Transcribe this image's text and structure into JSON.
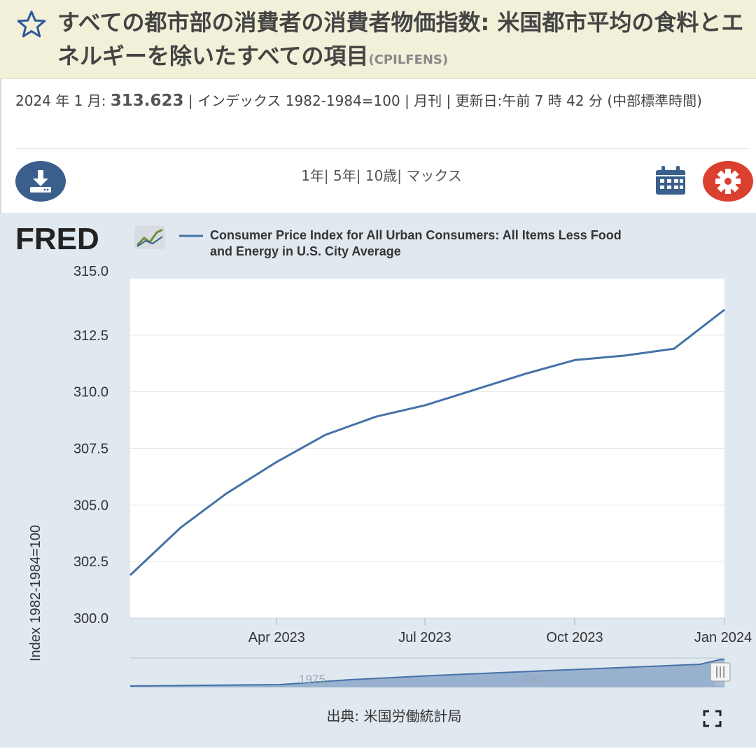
{
  "header": {
    "title": "すべての都市部の消費者の消費者物価指数: 米国都市平均の食料とエネルギーを除いたすべての項目",
    "series_id": "(CPILFENS)"
  },
  "info": {
    "date_label": "2024 年 1 月:",
    "value": "313.623",
    "details": "| インデックス 1982-1984=100 | 月刊 | 更新日:午前 7 時 42 分 (中部標準時間)"
  },
  "toolbar": {
    "range_links": "1年| 5年| 10歳| マックス"
  },
  "chart": {
    "logo_text": "FRED",
    "source": "出典: 米国労働統計局",
    "navigator_labels": [
      "1975",
      "2000"
    ]
  },
  "chart_data": {
    "type": "line",
    "title": "",
    "legend": "Consumer Price Index for All Urban Consumers: All Items Less Food and Energy in U.S. City Average",
    "ylabel": "Index 1982-1984=100",
    "xlabel": "",
    "ylim": [
      300.0,
      315.0
    ],
    "yticks": [
      "300.0",
      "302.5",
      "305.0",
      "307.5",
      "310.0",
      "312.5",
      "315.0"
    ],
    "xticks": [
      {
        "label": "Apr 2023",
        "x": "2023-04-01"
      },
      {
        "label": "Jul 2023",
        "x": "2023-07-01"
      },
      {
        "label": "Oct 2023",
        "x": "2023-10-01"
      },
      {
        "label": "Jan 2024",
        "x": "2024-01-01"
      }
    ],
    "series": [
      {
        "name": "Consumer Price Index for All Urban Consumers: All Items Less Food and Energy in U.S. City Average",
        "color": "#4572a7",
        "x": [
          "2023-01-01",
          "2023-02-01",
          "2023-03-01",
          "2023-04-01",
          "2023-05-01",
          "2023-06-01",
          "2023-07-01",
          "2023-08-01",
          "2023-09-01",
          "2023-10-01",
          "2023-11-01",
          "2023-12-01",
          "2024-01-01"
        ],
        "values": [
          301.9,
          304.0,
          305.5,
          306.9,
          308.1,
          308.9,
          309.4,
          310.1,
          310.8,
          311.4,
          311.6,
          311.9,
          313.623
        ]
      }
    ],
    "grid": true,
    "legend_position": "top"
  }
}
